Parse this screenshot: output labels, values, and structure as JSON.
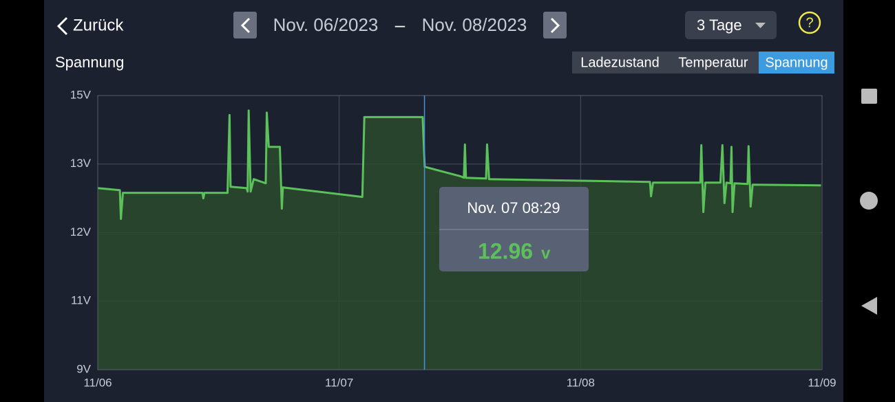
{
  "header": {
    "back": "Zurück",
    "date_from": "Nov. 06/2023",
    "date_sep": "–",
    "date_to": "Nov. 08/2023",
    "range": "3 Tage",
    "help": "?"
  },
  "tabs": {
    "items": [
      "Ladezustand",
      "Temperatur",
      "Spannung"
    ],
    "active": 2
  },
  "chart_data": {
    "type": "area",
    "title": "Spannung",
    "color": "#5cc15a",
    "fill": "#2a4a2c",
    "x": [
      0,
      2.2,
      2.3,
      2.5,
      10.4,
      10.5,
      10.6,
      12.9,
      13.1,
      13.2,
      14.8,
      14.9,
      15.0,
      15.2,
      15.5,
      16.7,
      16.8,
      17.0,
      18.1,
      18.3,
      18.4,
      26.3,
      26.5,
      32.3,
      32.5,
      36.1,
      36.4,
      36.5,
      36.6,
      38.6,
      38.7,
      38.9,
      47.0,
      54.9,
      55.0,
      55.2,
      59.9,
      60.0,
      60.2,
      60.4,
      61.9,
      62.1,
      62.3,
      62.5,
      62.9,
      63.0,
      63.1,
      63.3,
      64.6,
      64.7,
      64.9,
      65.1,
      71.9
    ],
    "values": [
      12.65,
      12.62,
      12.2,
      12.58,
      12.58,
      12.5,
      12.58,
      12.58,
      14.43,
      12.67,
      12.65,
      12.6,
      14.56,
      12.6,
      12.78,
      12.72,
      14.5,
      13.5,
      13.5,
      12.35,
      12.66,
      12.52,
      14.37,
      14.37,
      12.96,
      12.82,
      12.8,
      13.57,
      12.8,
      12.79,
      13.57,
      12.78,
      12.76,
      12.74,
      12.53,
      12.73,
      12.73,
      13.55,
      12.3,
      12.73,
      12.73,
      13.55,
      12.43,
      12.73,
      12.72,
      13.5,
      12.3,
      12.72,
      12.71,
      13.52,
      12.38,
      12.7,
      12.69
    ],
    "xlim": [
      0,
      72
    ],
    "xticks": [
      {
        "value": 0,
        "label": "11/06"
      },
      {
        "value": 24,
        "label": "11/07"
      },
      {
        "value": 48,
        "label": "11/08"
      },
      {
        "value": 72,
        "label": "11/09"
      }
    ],
    "ylim": [
      9,
      15
    ],
    "yticks": [
      {
        "value": 9,
        "label": "9V"
      },
      {
        "value": 11,
        "label": "11V"
      },
      {
        "value": 12,
        "label": "12V"
      },
      {
        "value": 13,
        "label": "13V"
      },
      {
        "value": 15,
        "label": "15V"
      }
    ],
    "grid": true,
    "tooltip": {
      "x": 32.48,
      "label": "Nov. 07 08:29",
      "value": 12.96,
      "unit": "v"
    }
  }
}
